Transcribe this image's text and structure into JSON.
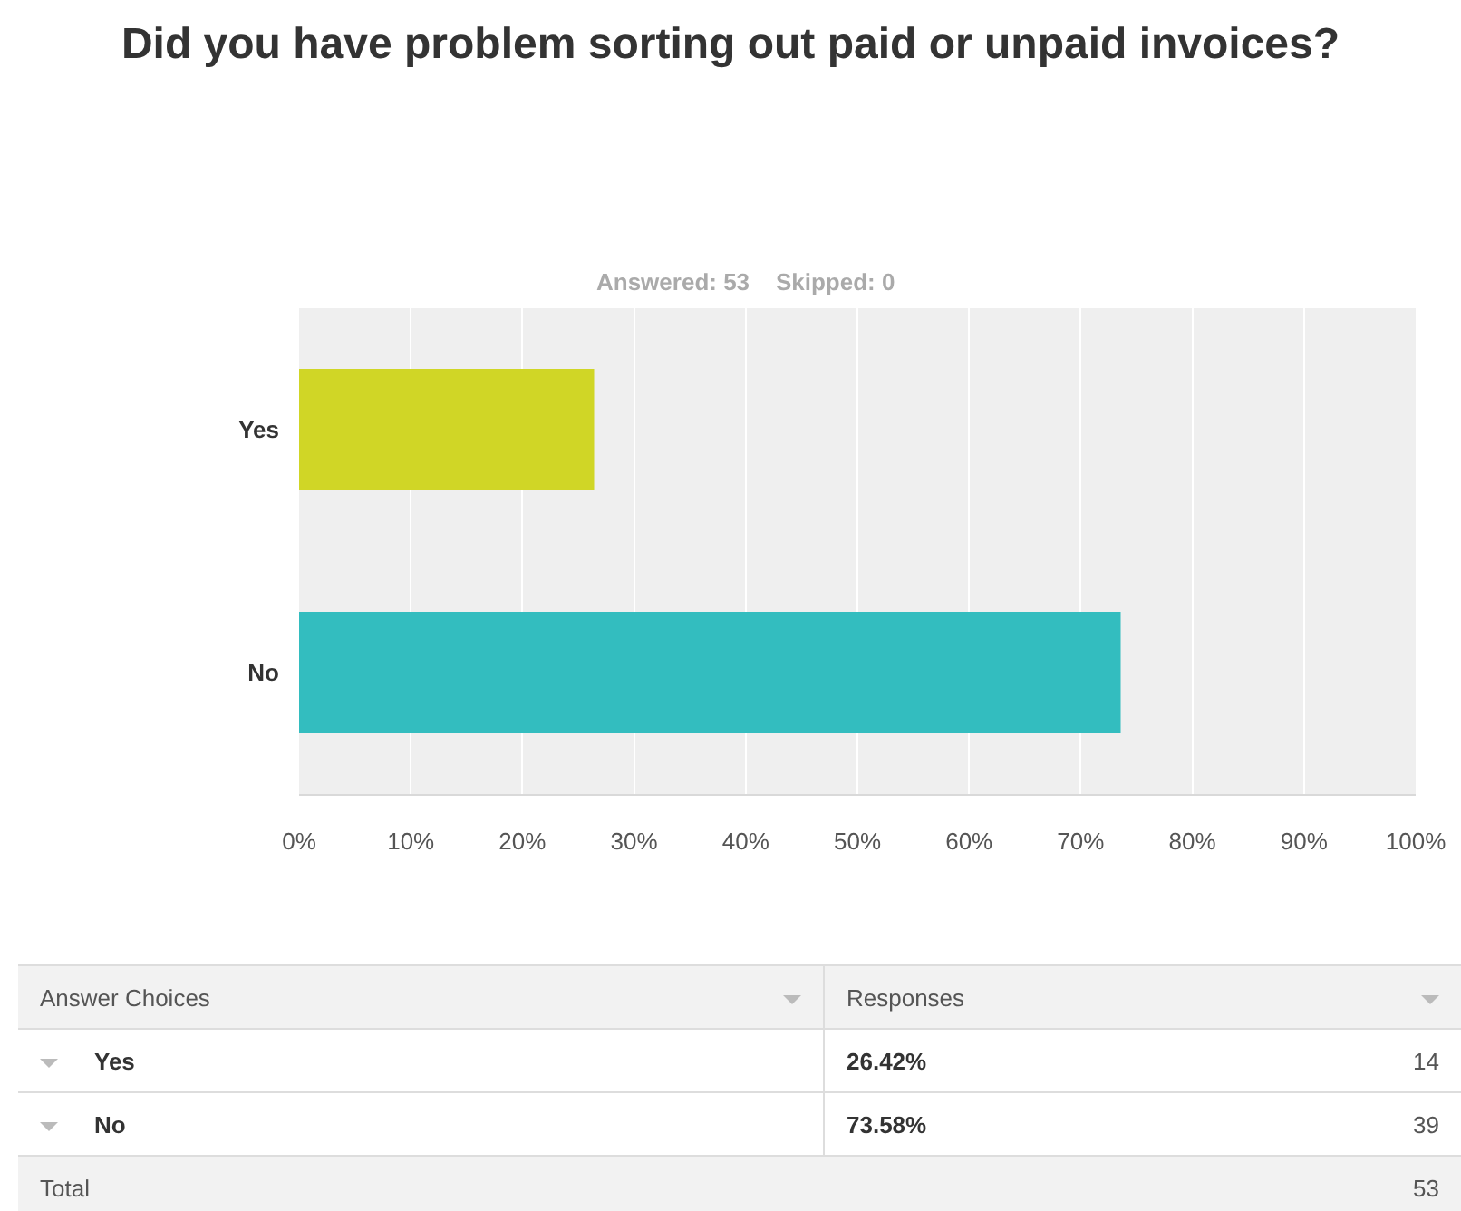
{
  "chart_data": {
    "type": "bar",
    "orientation": "horizontal",
    "title": "Did you have problem sorting out paid or unpaid invoices?",
    "subtitle": "Answered: 53    Skipped: 0",
    "categories": [
      "Yes",
      "No"
    ],
    "values": [
      26.42,
      73.58
    ],
    "colors": [
      "#d0d626",
      "#33bdbf"
    ],
    "xlim": [
      0,
      100
    ],
    "xticks": [
      {
        "value": 0,
        "label": "0%"
      },
      {
        "value": 10,
        "label": "10%"
      },
      {
        "value": 20,
        "label": "20%"
      },
      {
        "value": 30,
        "label": "30%"
      },
      {
        "value": 40,
        "label": "40%"
      },
      {
        "value": 50,
        "label": "50%"
      },
      {
        "value": 60,
        "label": "60%"
      },
      {
        "value": 70,
        "label": "70%"
      },
      {
        "value": 80,
        "label": "80%"
      },
      {
        "value": 90,
        "label": "90%"
      },
      {
        "value": 100,
        "label": "100%"
      }
    ],
    "grid": "x",
    "annotations": [
      "Answer Choices",
      "Responses",
      "26.42%",
      "14",
      "73.58%",
      "39",
      "Total",
      "53"
    ]
  }
}
